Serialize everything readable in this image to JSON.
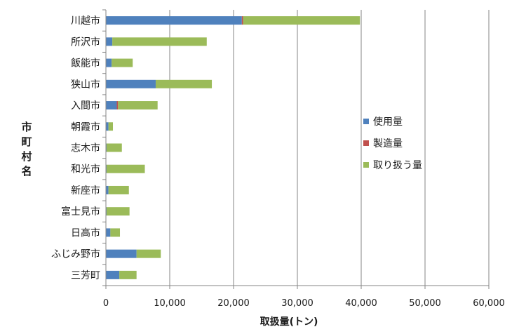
{
  "chart_data": {
    "type": "bar",
    "orientation": "horizontal",
    "stacked": true,
    "title": "",
    "xlabel": "取扱量(トン)",
    "ylabel": "市町村名",
    "xlim": [
      0,
      60000
    ],
    "x_ticks": [
      0,
      10000,
      20000,
      30000,
      40000,
      50000,
      60000
    ],
    "x_tick_labels": [
      "0",
      "10,000",
      "20,000",
      "30,000",
      "40,000",
      "50,000",
      "60,000"
    ],
    "grid": "vertical",
    "legend_position": "right",
    "categories": [
      "川越市",
      "所沢市",
      "飯能市",
      "狭山市",
      "入間市",
      "朝霞市",
      "志木市",
      "和光市",
      "新座市",
      "富士見市",
      "日高市",
      "ふじみ野市",
      "三芳町"
    ],
    "series": [
      {
        "name": "使用量",
        "color": "#4f81bd",
        "values": [
          21300,
          1000,
          900,
          7800,
          1700,
          400,
          100,
          100,
          400,
          100,
          700,
          4800,
          2100
        ]
      },
      {
        "name": "製造量",
        "color": "#c0504d",
        "values": [
          200,
          0,
          0,
          0,
          200,
          0,
          0,
          0,
          0,
          0,
          0,
          0,
          0
        ]
      },
      {
        "name": "取り扱う量",
        "color": "#9bbb59",
        "values": [
          18300,
          14800,
          3300,
          8800,
          6200,
          700,
          2400,
          6000,
          3200,
          3600,
          1500,
          3800,
          2700
        ]
      }
    ]
  }
}
